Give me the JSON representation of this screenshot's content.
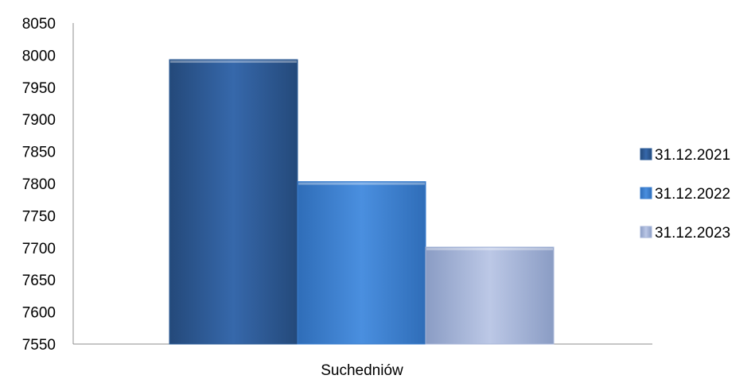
{
  "chart_data": {
    "type": "bar",
    "categories": [
      "Suchedniów"
    ],
    "series": [
      {
        "name": "31.12.2021",
        "values": [
          7993
        ],
        "color": "#2E5E99"
      },
      {
        "name": "31.12.2022",
        "values": [
          7803
        ],
        "color": "#3B7FCF"
      },
      {
        "name": "31.12.2023",
        "values": [
          7701
        ],
        "color": "#A7B6D8"
      }
    ],
    "yticks": [
      "7550",
      "7600",
      "7650",
      "7700",
      "7750",
      "7800",
      "7850",
      "7900",
      "7950",
      "8000",
      "8050"
    ],
    "ylim": [
      7550,
      8050
    ],
    "grid": false,
    "legend": "right"
  }
}
